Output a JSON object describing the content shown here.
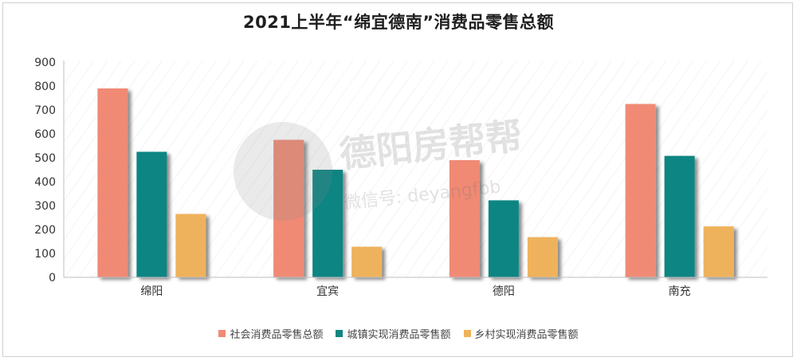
{
  "chart_data": {
    "type": "bar",
    "title": "2021上半年“绵宜德南”消费品零售总额",
    "categories": [
      "绵阳",
      "宜宾",
      "德阳",
      "南充"
    ],
    "series": [
      {
        "name": "社会消费品零售总额",
        "color": "#f08a75",
        "values": [
          790,
          575,
          490,
          725
        ]
      },
      {
        "name": "城镇实现消费品零售额",
        "color": "#118582",
        "values": [
          525,
          450,
          322,
          508
        ]
      },
      {
        "name": "乡村实现消费品零售额",
        "color": "#efb25c",
        "values": [
          265,
          128,
          168,
          213
        ]
      }
    ],
    "yticks": [
      "0",
      "100",
      "200",
      "300",
      "400",
      "500",
      "600",
      "700",
      "800",
      "900"
    ],
    "ylim": [
      0,
      900
    ],
    "grid": false,
    "legend_position": "bottom"
  },
  "watermark": {
    "line1": "德阳房帮帮",
    "line2": "微信号: deyangfbb"
  }
}
